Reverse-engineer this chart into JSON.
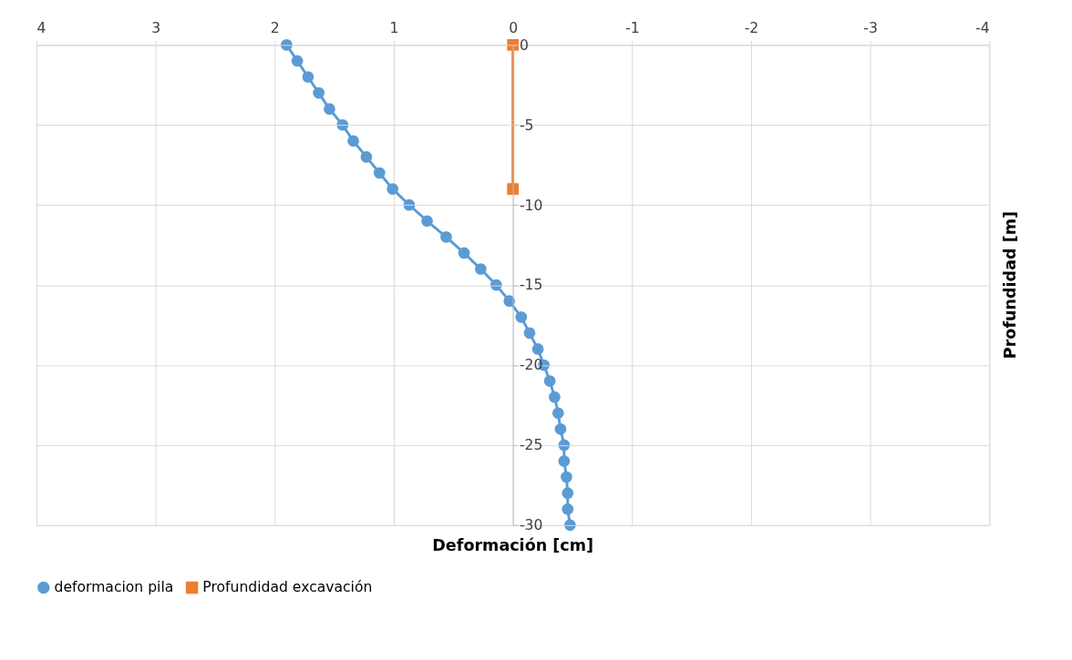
{
  "chart_data": {
    "type": "line",
    "xlabel": "Deformación [cm]",
    "ylabel": "Profundidad [m]",
    "xlim": [
      4,
      -4
    ],
    "xticks": [
      4,
      3,
      2,
      1,
      0,
      -1,
      -2,
      -3,
      -4
    ],
    "ylim": [
      -30,
      0
    ],
    "yticks": [
      0,
      -5,
      -10,
      -15,
      -20,
      -25,
      -30
    ],
    "grid": true,
    "legend": "bottom",
    "line_style": "solid",
    "series": [
      {
        "name": "deformacion pila",
        "color": "#5b9bd5",
        "marker": "circle",
        "x": [
          1.9,
          1.81,
          1.72,
          1.63,
          1.54,
          1.43,
          1.34,
          1.23,
          1.12,
          1.01,
          0.87,
          0.72,
          0.56,
          0.41,
          0.27,
          0.14,
          0.03,
          -0.07,
          -0.14,
          -0.21,
          -0.26,
          -0.31,
          -0.35,
          -0.38,
          -0.4,
          -0.43,
          -0.43,
          -0.45,
          -0.46,
          -0.46,
          -0.48
        ],
        "values": [
          0,
          -1,
          -2,
          -3,
          -4,
          -5,
          -6,
          -7,
          -8,
          -9,
          -10,
          -11,
          -12,
          -13,
          -14,
          -15,
          -16,
          -17,
          -18,
          -19,
          -20,
          -21,
          -22,
          -23,
          -24,
          -25,
          -26,
          -27,
          -28,
          -29,
          -30
        ]
      },
      {
        "name": "Profundidad excavación",
        "color": "#ed7d31",
        "marker": "square",
        "x": [
          0,
          0
        ],
        "values": [
          0,
          -9
        ]
      }
    ]
  }
}
